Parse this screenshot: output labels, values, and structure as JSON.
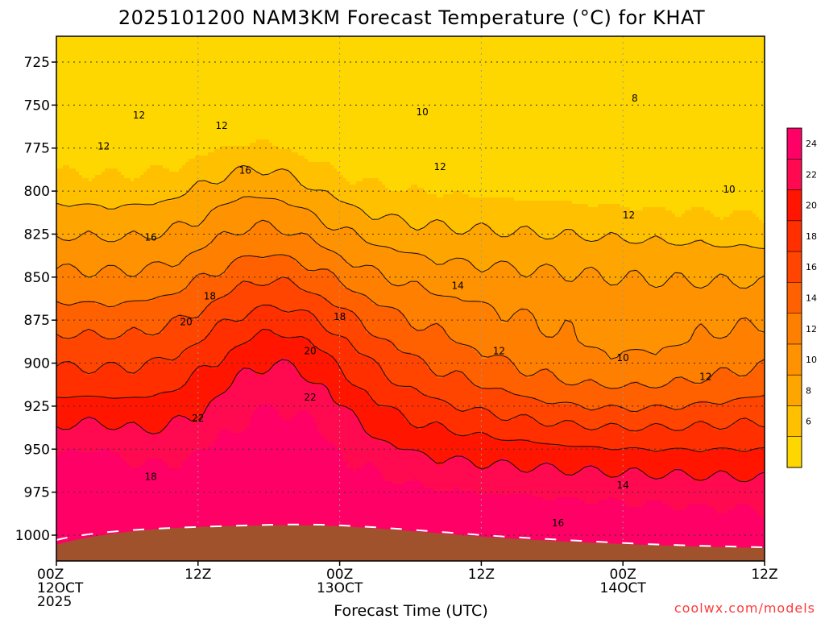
{
  "chart_data": {
    "type": "heatmap",
    "title": "2025101200 NAM3KM Forecast Temperature (°C) for KHAT",
    "xlabel": "Forecast Time (UTC)",
    "ylabel": "",
    "credit": "coolwx.com/models",
    "x_range_hours": [
      0,
      60
    ],
    "y_range_hpa": [
      1015,
      710
    ],
    "x_ticks": [
      {
        "hour": 0,
        "lines": [
          "00Z",
          "12OCT",
          "2025"
        ]
      },
      {
        "hour": 12,
        "lines": [
          "12Z"
        ]
      },
      {
        "hour": 24,
        "lines": [
          "00Z",
          "13OCT"
        ]
      },
      {
        "hour": 36,
        "lines": [
          "12Z"
        ]
      },
      {
        "hour": 48,
        "lines": [
          "00Z",
          "14OCT"
        ]
      },
      {
        "hour": 60,
        "lines": [
          "12Z"
        ]
      }
    ],
    "y_ticks": [
      725,
      750,
      775,
      800,
      825,
      850,
      875,
      900,
      925,
      950,
      975,
      1000
    ],
    "colorbar": {
      "levels": [
        4,
        6,
        8,
        10,
        12,
        14,
        16,
        18,
        20,
        22,
        24,
        26
      ],
      "labels": [
        "6",
        "8",
        "10",
        "12",
        "14",
        "16",
        "18",
        "20",
        "22",
        "24"
      ],
      "colors": [
        "#ffd700",
        "#ffc000",
        "#ffa500",
        "#ff9200",
        "#ff7f00",
        "#ff6000",
        "#ff4500",
        "#ff2f00",
        "#ff1500",
        "#ff0a50",
        "#ff0066"
      ]
    },
    "contour_labels": [
      {
        "text": "12",
        "hour": 7.0,
        "p": 756
      },
      {
        "text": "12",
        "hour": 14.0,
        "p": 762
      },
      {
        "text": "12",
        "hour": 4.0,
        "p": 774
      },
      {
        "text": "16",
        "hour": 16.0,
        "p": 788
      },
      {
        "text": "10",
        "hour": 31.0,
        "p": 754
      },
      {
        "text": "8",
        "hour": 49.0,
        "p": 746
      },
      {
        "text": "12",
        "hour": 32.5,
        "p": 786
      },
      {
        "text": "10",
        "hour": 57.0,
        "p": 799
      },
      {
        "text": "12",
        "hour": 48.5,
        "p": 814
      },
      {
        "text": "16",
        "hour": 8.0,
        "p": 827
      },
      {
        "text": "14",
        "hour": 34.0,
        "p": 855
      },
      {
        "text": "18",
        "hour": 13.0,
        "p": 861
      },
      {
        "text": "18",
        "hour": 24.0,
        "p": 873
      },
      {
        "text": "20",
        "hour": 11.0,
        "p": 876
      },
      {
        "text": "20",
        "hour": 21.5,
        "p": 893
      },
      {
        "text": "12",
        "hour": 37.5,
        "p": 893
      },
      {
        "text": "10",
        "hour": 48.0,
        "p": 897
      },
      {
        "text": "12",
        "hour": 55.0,
        "p": 908
      },
      {
        "text": "22",
        "hour": 21.5,
        "p": 920
      },
      {
        "text": "22",
        "hour": 12.0,
        "p": 932
      },
      {
        "text": "18",
        "hour": 8.0,
        "p": 966
      },
      {
        "text": "14",
        "hour": 48.0,
        "p": 971
      },
      {
        "text": "16",
        "hour": 42.5,
        "p": 993
      }
    ]
  }
}
